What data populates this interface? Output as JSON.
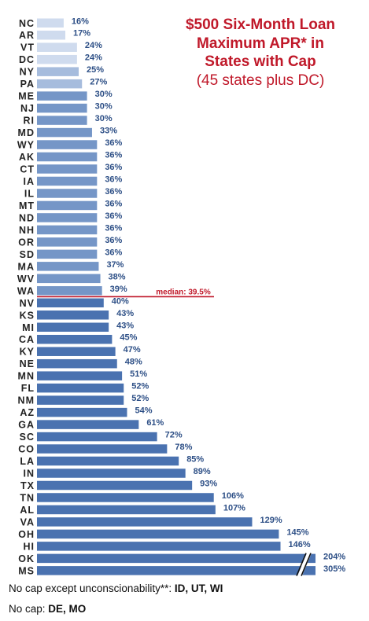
{
  "title_line1": "$500 Six-Month Loan",
  "title_line2": "Maximum APR* in",
  "title_line3": "States with Cap",
  "subtitle": "(45 states plus DC)",
  "footnote1_prefix": "No cap except unconscionability**: ",
  "footnote1_states": "ID, UT, WI",
  "footnote2_prefix": "No cap: ",
  "footnote2_states": "DE, MO",
  "colors": {
    "light": "#cfdbee",
    "lightmid": "#a6bcdd",
    "mid": "#7596c7",
    "dark": "#4a72b0",
    "median_line": "#c0192a"
  },
  "chart_data": {
    "type": "bar",
    "orientation": "horizontal",
    "title": "$500 Six-Month Loan Maximum APR* in States with Cap",
    "subtitle": "(45 states plus DC)",
    "xlabel": "",
    "ylabel": "",
    "categories": [
      "NC",
      "AR",
      "VT",
      "DC",
      "NY",
      "PA",
      "ME",
      "NJ",
      "RI",
      "MD",
      "WY",
      "AK",
      "CT",
      "IA",
      "IL",
      "MT",
      "ND",
      "NH",
      "OR",
      "SD",
      "MA",
      "WV",
      "WA",
      "NV",
      "KS",
      "MI",
      "CA",
      "KY",
      "NE",
      "MN",
      "FL",
      "NM",
      "AZ",
      "GA",
      "SC",
      "CO",
      "LA",
      "IN",
      "TX",
      "TN",
      "AL",
      "VA",
      "OH",
      "HI",
      "OK",
      "MS"
    ],
    "values": [
      16,
      17,
      24,
      24,
      25,
      27,
      30,
      30,
      30,
      33,
      36,
      36,
      36,
      36,
      36,
      36,
      36,
      36,
      36,
      36,
      37,
      38,
      39,
      40,
      43,
      43,
      45,
      47,
      48,
      51,
      52,
      52,
      54,
      61,
      72,
      78,
      85,
      89,
      93,
      106,
      107,
      129,
      145,
      146,
      204,
      305
    ],
    "value_labels": [
      "16%",
      "17%",
      "24%",
      "24%",
      "25%",
      "27%",
      "30%",
      "30%",
      "30%",
      "33%",
      "36%",
      "36%",
      "36%",
      "36%",
      "36%",
      "36%",
      "36%",
      "36%",
      "36%",
      "36%",
      "37%",
      "38%",
      "39%",
      "40%",
      "43%",
      "43%",
      "45%",
      "47%",
      "48%",
      "51%",
      "52%",
      "52%",
      "54%",
      "61%",
      "72%",
      "78%",
      "85%",
      "89%",
      "93%",
      "106%",
      "107%",
      "129%",
      "145%",
      "146%",
      "204%",
      "305%"
    ],
    "broken_axis_categories": [
      "OK",
      "MS"
    ],
    "median": 39.5,
    "median_label": "median: 39.5%",
    "grid": false,
    "legend": "none"
  }
}
